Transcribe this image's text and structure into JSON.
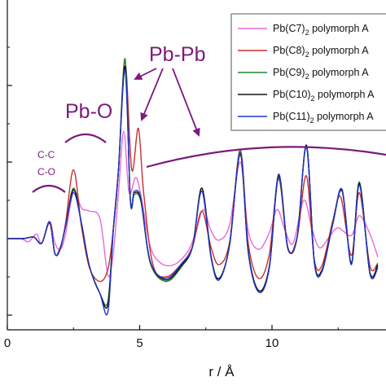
{
  "chart_data": {
    "type": "line",
    "title": "",
    "xlabel": "r / Å",
    "ylabel": "",
    "xlim": [
      0,
      14
    ],
    "ylim": [
      -1.0,
      2.6
    ],
    "x_ticks": [
      0,
      5,
      10
    ],
    "y_tick_values": [
      -1.0,
      0,
      1.0,
      2.0
    ],
    "grid": false,
    "legend_position": "top-right",
    "annotation_color": "#7b1a7c",
    "annotations": {
      "cc": "C-C",
      "co": "C-O",
      "pbo": "Pb-O",
      "pbpb": "Pb-Pb"
    },
    "series": [
      {
        "name": "Pb(C7)",
        "sub": "2",
        "suffix": " polymorph A",
        "color": "#e66ad8",
        "points": [
          [
            0,
            0
          ],
          [
            0.5,
            0
          ],
          [
            0.8,
            -0.04
          ],
          [
            1.1,
            0.06
          ],
          [
            1.3,
            -0.06
          ],
          [
            1.6,
            0.22
          ],
          [
            1.8,
            -0.06
          ],
          [
            2.0,
            -0.14
          ],
          [
            2.2,
            0.06
          ],
          [
            2.5,
            0.62
          ],
          [
            2.8,
            0.4
          ],
          [
            3.1,
            0.36
          ],
          [
            3.5,
            0.26
          ],
          [
            3.8,
            -0.48
          ],
          [
            4.0,
            -0.2
          ],
          [
            4.2,
            0.6
          ],
          [
            4.4,
            1.4
          ],
          [
            4.6,
            0.6
          ],
          [
            4.85,
            0.8
          ],
          [
            5.05,
            0.56
          ],
          [
            5.4,
            -0.1
          ],
          [
            5.8,
            -0.32
          ],
          [
            6.3,
            -0.34
          ],
          [
            6.8,
            -0.18
          ],
          [
            7.1,
            0.06
          ],
          [
            7.4,
            0.38
          ],
          [
            7.7,
            0.1
          ],
          [
            8.0,
            -0.02
          ],
          [
            8.4,
            0.18
          ],
          [
            8.8,
            1.0
          ],
          [
            9.1,
            0.1
          ],
          [
            9.5,
            -0.14
          ],
          [
            9.9,
            0.08
          ],
          [
            10.2,
            0.38
          ],
          [
            10.5,
            0.1
          ],
          [
            10.8,
            -0.06
          ],
          [
            11.2,
            0.5
          ],
          [
            11.5,
            0.14
          ],
          [
            11.8,
            -0.12
          ],
          [
            12.2,
            0.04
          ],
          [
            12.5,
            0.14
          ],
          [
            13.0,
            0.04
          ],
          [
            13.3,
            0.3
          ],
          [
            13.7,
            0.06
          ],
          [
            14,
            -0.24
          ]
        ]
      },
      {
        "name": "Pb(C8)",
        "sub": "2",
        "suffix": " polymorph A",
        "color": "#c8302e",
        "points": [
          [
            0,
            0
          ],
          [
            0.6,
            0
          ],
          [
            1.0,
            0.02
          ],
          [
            1.3,
            -0.06
          ],
          [
            1.6,
            0.2
          ],
          [
            1.8,
            -0.2
          ],
          [
            2.0,
            -0.14
          ],
          [
            2.2,
            0.2
          ],
          [
            2.5,
            0.9
          ],
          [
            2.8,
            0.16
          ],
          [
            3.1,
            -0.38
          ],
          [
            3.5,
            -0.56
          ],
          [
            3.8,
            -0.4
          ],
          [
            4.0,
            0.1
          ],
          [
            4.2,
            0.9
          ],
          [
            4.45,
            2.3
          ],
          [
            4.7,
            0.9
          ],
          [
            4.95,
            1.44
          ],
          [
            5.15,
            0.6
          ],
          [
            5.5,
            -0.34
          ],
          [
            6.0,
            -0.5
          ],
          [
            6.6,
            -0.32
          ],
          [
            7.0,
            -0.1
          ],
          [
            7.35,
            0.36
          ],
          [
            7.7,
            -0.12
          ],
          [
            8.0,
            -0.34
          ],
          [
            8.4,
            -0.04
          ],
          [
            8.8,
            1.16
          ],
          [
            9.1,
            -0.06
          ],
          [
            9.5,
            -0.52
          ],
          [
            9.9,
            -0.2
          ],
          [
            10.25,
            0.78
          ],
          [
            10.6,
            -0.14
          ],
          [
            10.95,
            0.02
          ],
          [
            11.3,
            0.82
          ],
          [
            11.6,
            -0.28
          ],
          [
            11.9,
            -0.34
          ],
          [
            12.3,
            0.24
          ],
          [
            12.6,
            0.54
          ],
          [
            13.0,
            -0.22
          ],
          [
            13.3,
            0.6
          ],
          [
            13.7,
            -0.36
          ],
          [
            14,
            -0.32
          ]
        ]
      },
      {
        "name": "Pb(C9)",
        "sub": "2",
        "suffix": " polymorph A",
        "color": "#1e8a2e",
        "points": [
          [
            0,
            0
          ],
          [
            0.6,
            0
          ],
          [
            1.0,
            0.02
          ],
          [
            1.3,
            -0.06
          ],
          [
            1.6,
            0.22
          ],
          [
            1.8,
            -0.2
          ],
          [
            2.0,
            -0.12
          ],
          [
            2.2,
            0.16
          ],
          [
            2.5,
            0.66
          ],
          [
            2.8,
            0.2
          ],
          [
            3.1,
            -0.36
          ],
          [
            3.5,
            -0.72
          ],
          [
            3.8,
            -0.82
          ],
          [
            4.0,
            0.1
          ],
          [
            4.2,
            0.9
          ],
          [
            4.45,
            2.35
          ],
          [
            4.65,
            0.5
          ],
          [
            4.8,
            0.58
          ],
          [
            5.05,
            0.48
          ],
          [
            5.4,
            -0.32
          ],
          [
            6.0,
            -0.56
          ],
          [
            6.6,
            -0.36
          ],
          [
            7.0,
            -0.1
          ],
          [
            7.35,
            0.66
          ],
          [
            7.7,
            -0.24
          ],
          [
            8.0,
            -0.52
          ],
          [
            8.4,
            -0.08
          ],
          [
            8.8,
            1.14
          ],
          [
            9.1,
            -0.16
          ],
          [
            9.5,
            -0.68
          ],
          [
            9.9,
            -0.36
          ],
          [
            10.25,
            0.8
          ],
          [
            10.6,
            -0.12
          ],
          [
            10.95,
            0.02
          ],
          [
            11.3,
            1.2
          ],
          [
            11.6,
            -0.3
          ],
          [
            11.9,
            -0.4
          ],
          [
            12.3,
            0.2
          ],
          [
            12.65,
            0.64
          ],
          [
            13.0,
            -0.32
          ],
          [
            13.3,
            0.74
          ],
          [
            13.7,
            -0.46
          ],
          [
            14,
            -0.36
          ]
        ]
      },
      {
        "name": "Pb(C10)",
        "sub": "2",
        "suffix": " polymorph A",
        "color": "#111111",
        "points": [
          [
            0,
            0
          ],
          [
            0.6,
            0
          ],
          [
            1.0,
            0.02
          ],
          [
            1.3,
            -0.06
          ],
          [
            1.6,
            0.22
          ],
          [
            1.8,
            -0.2
          ],
          [
            2.0,
            -0.12
          ],
          [
            2.2,
            0.16
          ],
          [
            2.5,
            0.64
          ],
          [
            2.8,
            0.2
          ],
          [
            3.1,
            -0.36
          ],
          [
            3.5,
            -0.72
          ],
          [
            3.8,
            -0.86
          ],
          [
            4.0,
            0.1
          ],
          [
            4.2,
            0.9
          ],
          [
            4.45,
            2.25
          ],
          [
            4.65,
            0.5
          ],
          [
            4.8,
            0.6
          ],
          [
            5.05,
            0.5
          ],
          [
            5.4,
            -0.3
          ],
          [
            6.0,
            -0.54
          ],
          [
            6.6,
            -0.34
          ],
          [
            7.0,
            -0.1
          ],
          [
            7.35,
            0.66
          ],
          [
            7.7,
            -0.24
          ],
          [
            8.0,
            -0.52
          ],
          [
            8.4,
            -0.08
          ],
          [
            8.8,
            1.1
          ],
          [
            9.1,
            -0.16
          ],
          [
            9.5,
            -0.68
          ],
          [
            9.9,
            -0.36
          ],
          [
            10.25,
            0.82
          ],
          [
            10.6,
            -0.12
          ],
          [
            10.95,
            0.02
          ],
          [
            11.3,
            1.22
          ],
          [
            11.6,
            -0.3
          ],
          [
            11.9,
            -0.4
          ],
          [
            12.3,
            0.2
          ],
          [
            12.65,
            0.62
          ],
          [
            13.0,
            -0.32
          ],
          [
            13.3,
            0.72
          ],
          [
            13.7,
            -0.44
          ],
          [
            14,
            -0.34
          ]
        ]
      },
      {
        "name": "Pb(C11)",
        "sub": "2",
        "suffix": " polymorph A",
        "color": "#2233c8",
        "points": [
          [
            0,
            0
          ],
          [
            0.6,
            0
          ],
          [
            1.0,
            0.02
          ],
          [
            1.3,
            -0.06
          ],
          [
            1.6,
            0.22
          ],
          [
            1.8,
            -0.2
          ],
          [
            2.0,
            -0.12
          ],
          [
            2.2,
            0.16
          ],
          [
            2.5,
            0.6
          ],
          [
            2.8,
            0.2
          ],
          [
            3.1,
            -0.36
          ],
          [
            3.5,
            -0.72
          ],
          [
            3.8,
            -0.96
          ],
          [
            4.0,
            0.1
          ],
          [
            4.2,
            0.9
          ],
          [
            4.45,
            2.2
          ],
          [
            4.65,
            0.5
          ],
          [
            4.8,
            0.62
          ],
          [
            5.05,
            0.52
          ],
          [
            5.4,
            -0.3
          ],
          [
            6.0,
            -0.52
          ],
          [
            6.6,
            -0.32
          ],
          [
            7.0,
            -0.1
          ],
          [
            7.35,
            0.62
          ],
          [
            7.7,
            -0.26
          ],
          [
            8.0,
            -0.54
          ],
          [
            8.4,
            -0.08
          ],
          [
            8.8,
            1.12
          ],
          [
            9.1,
            -0.18
          ],
          [
            9.5,
            -0.7
          ],
          [
            9.9,
            -0.38
          ],
          [
            10.25,
            0.84
          ],
          [
            10.6,
            -0.12
          ],
          [
            10.95,
            0.02
          ],
          [
            11.3,
            1.2
          ],
          [
            11.6,
            -0.32
          ],
          [
            11.9,
            -0.42
          ],
          [
            12.3,
            0.2
          ],
          [
            12.65,
            0.64
          ],
          [
            13.0,
            -0.34
          ],
          [
            13.3,
            0.7
          ],
          [
            13.7,
            -0.46
          ],
          [
            14,
            -0.38
          ]
        ]
      }
    ]
  }
}
